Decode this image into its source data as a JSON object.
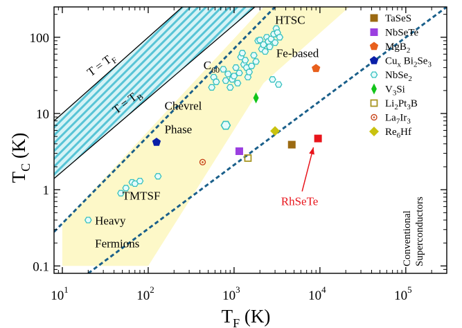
{
  "chart_data": {
    "type": "scatter",
    "x_scale": "log",
    "y_scale": "log",
    "xlim": [
      8,
      300000
    ],
    "ylim": [
      0.08,
      250
    ],
    "xlabel": {
      "main": "T",
      "sub": "F",
      "unit": " (K)"
    },
    "ylabel": {
      "main": "T",
      "sub": "C",
      "unit": " (K)"
    },
    "x_ticks": [
      {
        "value": 10,
        "base": "10",
        "exp": "1"
      },
      {
        "value": 100,
        "base": "10",
        "exp": "2"
      },
      {
        "value": 1000,
        "base": "10",
        "exp": "3"
      },
      {
        "value": 10000,
        "base": "10",
        "exp": "4"
      },
      {
        "value": 100000,
        "base": "10",
        "exp": "5"
      }
    ],
    "y_ticks": [
      {
        "value": 0.1,
        "label": "0.1"
      },
      {
        "value": 1,
        "label": "1"
      },
      {
        "value": 10,
        "label": "10"
      },
      {
        "value": 100,
        "label": "100"
      }
    ],
    "bounds": [
      {
        "name": "T = T_F",
        "label": [
          "T = T",
          "F",
          ""
        ],
        "x": [
          8,
          250
        ],
        "y": [
          8,
          250
        ],
        "label_at": [
          30,
          40
        ],
        "angle": -36
      },
      {
        "name": "T = T_B",
        "label": [
          "T = T",
          "B",
          ""
        ],
        "x": [
          8,
          1750
        ],
        "y": [
          1.4,
          250
        ],
        "label_at": [
          60,
          13
        ],
        "angle": -37
      }
    ],
    "conventional_line": {
      "x": [
        20,
        300000
      ],
      "y": [
        0.08,
        250
      ]
    },
    "unconventional_line": {
      "x": [
        8,
        3000
      ],
      "y": [
        0.28,
        250
      ]
    },
    "unconventional_band": [
      [
        10,
        0.1
      ],
      [
        10,
        0.36
      ],
      [
        2200,
        250
      ],
      [
        22000,
        250
      ],
      [
        2200,
        25
      ],
      [
        100,
        0.1
      ]
    ],
    "region_labels": [
      {
        "lines": [
          "HTSC"
        ],
        "x": 3000,
        "y": 150,
        "anchor": "start"
      },
      {
        "lines": [
          "Fe-based"
        ],
        "x": 3100,
        "y": 55,
        "anchor": "start"
      },
      {
        "lines": [
          "C",
          "60",
          ""
        ],
        "x": 440,
        "y": 38,
        "anchor": "start",
        "sub": true
      },
      {
        "lines": [
          "Chevrel",
          "Phase"
        ],
        "x": 155,
        "y": 11.2,
        "y2": 5.5,
        "anchor": "start"
      },
      {
        "lines": [
          "TMTSF"
        ],
        "x": 50,
        "y": 0.74,
        "anchor": "start"
      },
      {
        "lines": [
          "Heavy",
          "Fermions"
        ],
        "x": 24,
        "y": 0.35,
        "y2": 0.175,
        "anchor": "start"
      }
    ],
    "series": [
      {
        "name": "TaSeS",
        "label": [
          "TaSeS"
        ],
        "marker": "square",
        "color": "#9b6a12",
        "x": [
          4700
        ],
        "y": [
          3.9
        ]
      },
      {
        "name": "NbSeTe",
        "label": [
          "NbSeTe"
        ],
        "marker": "square",
        "color": "#9b3fe0",
        "x": [
          1150
        ],
        "y": [
          3.2
        ]
      },
      {
        "name": "MgB2",
        "label": [
          "MgB",
          "2",
          ""
        ],
        "marker": "pentagon",
        "color": "#e85f1c",
        "x": [
          9000
        ],
        "y": [
          39
        ]
      },
      {
        "name": "CuxBi2Se3",
        "label": [
          "Cu",
          "x",
          " Bi",
          "2",
          "Se",
          "3",
          ""
        ],
        "marker": "pentagon",
        "color": "#0a1fa8",
        "x": [
          125
        ],
        "y": [
          4.2
        ]
      },
      {
        "name": "NbSe2",
        "label": [
          "NbSe",
          "2",
          ""
        ],
        "marker": "hexagon-open",
        "color": "#35c0c0",
        "x": [
          20,
          48,
          55,
          65,
          70,
          80,
          130,
          550,
          580,
          620,
          750,
          800,
          850,
          900,
          950,
          1000,
          1050,
          1100,
          1150,
          1200,
          1250,
          1300,
          1350,
          1400,
          1450,
          1500,
          1600,
          1700,
          1800,
          1900,
          2000,
          2100,
          2200,
          2300,
          2400,
          2500,
          2600,
          2700,
          2800,
          2900,
          3000,
          3100,
          3200,
          3300,
          3400
        ],
        "y": [
          0.4,
          0.9,
          1.05,
          1.25,
          1.2,
          1.3,
          1.5,
          22,
          30,
          26,
          38,
          27,
          33,
          22,
          28,
          31,
          40,
          25,
          34,
          55,
          62,
          44,
          50,
          40,
          30,
          35,
          42,
          58,
          48,
          90,
          92,
          70,
          80,
          65,
          100,
          88,
          75,
          95,
          28,
          110,
          85,
          130,
          115,
          24,
          100
        ]
      },
      {
        "name": "NbSe2 (large)",
        "label": [],
        "marker": "hexagon-open-large",
        "color": "#35c0c0",
        "x": [
          800
        ],
        "y": [
          7
        ]
      },
      {
        "name": "V3Si",
        "label": [
          "V",
          "3",
          "Si"
        ],
        "marker": "diamond-thin",
        "color": "#12c41a",
        "x": [
          1800
        ],
        "y": [
          16
        ]
      },
      {
        "name": "Li2Pt3B",
        "label": [
          "Li",
          "2",
          "Pt",
          "3",
          "B"
        ],
        "marker": "square-open",
        "color": "#a79520",
        "x": [
          1450
        ],
        "y": [
          2.6
        ]
      },
      {
        "name": "La7Ir3",
        "label": [
          "La",
          "7",
          "Ir",
          "3",
          ""
        ],
        "marker": "circle-dot",
        "color": "#c8461c",
        "x": [
          430
        ],
        "y": [
          2.3
        ]
      },
      {
        "name": "Re6Hf",
        "label": [
          "Re",
          "6",
          "Hf"
        ],
        "marker": "diamond",
        "color": "#c9c20f",
        "x": [
          3000
        ],
        "y": [
          5.9
        ]
      }
    ],
    "rhsete": {
      "name": "RhSeTe",
      "label": "RhSeTe",
      "marker": "square",
      "color": "#e8141b",
      "x": 9500,
      "y": 4.7,
      "label_at": [
        5800,
        0.63
      ],
      "arrow_from": [
        6200,
        0.95
      ],
      "arrow_to": [
        8400,
        3.6
      ]
    },
    "side_label": [
      "Conventional",
      "Superconductors"
    ]
  }
}
